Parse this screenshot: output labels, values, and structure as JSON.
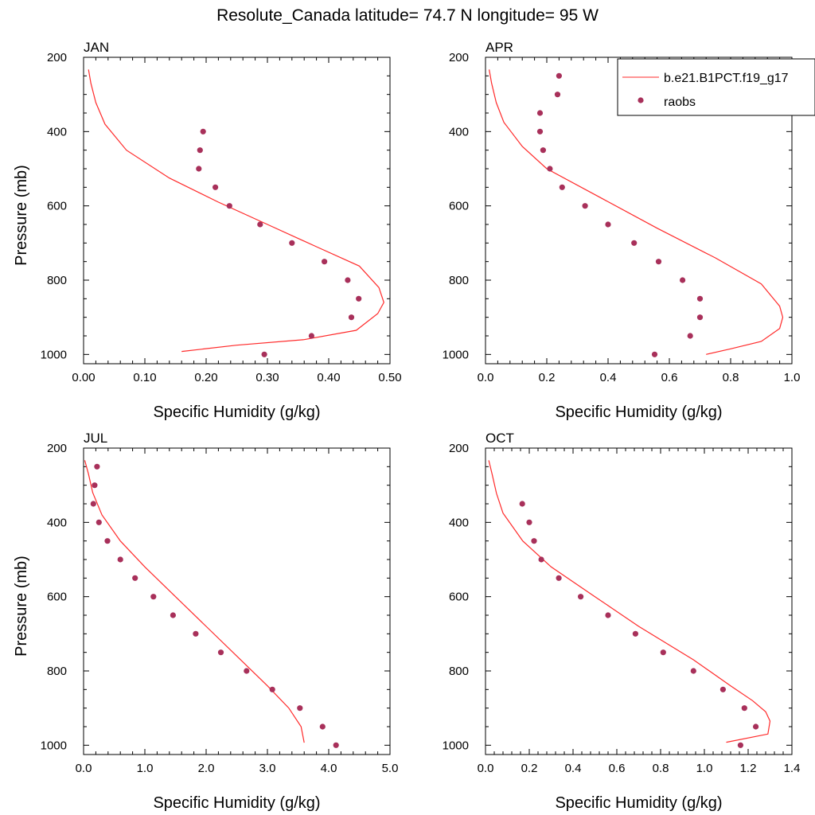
{
  "figure": {
    "title": "Resolute_Canada  latitude= 74.7 N longitude= 95 W"
  },
  "legend": {
    "model_label": "b.e21.B1PCT.f19_g17",
    "obs_label": "raobs"
  },
  "colors": {
    "model_line": "#ff2a2a",
    "obs_marker": "#a8305a",
    "axes": "#000000"
  },
  "chart_data": [
    {
      "type": "line+scatter",
      "panel_title": "JAN",
      "xlabel": "Specific Humidity (g/kg)",
      "ylabel": "Pressure (mb)",
      "xlim": [
        0,
        0.5
      ],
      "ylim": [
        1025,
        200
      ],
      "y_inverted": true,
      "xticks": [
        "0.00",
        "0.10",
        "0.20",
        "0.30",
        "0.40",
        "0.50"
      ],
      "xtick_values": [
        0,
        0.1,
        0.2,
        0.3,
        0.4,
        0.5
      ],
      "yticks": [
        200,
        400,
        600,
        800,
        1000
      ],
      "series": [
        {
          "name": "b.e21.B1PCT.f19_g17",
          "kind": "line",
          "points": [
            [
              0.008,
              233
            ],
            [
              0.012,
              270
            ],
            [
              0.02,
              322
            ],
            [
              0.035,
              380
            ],
            [
              0.07,
              450
            ],
            [
              0.14,
              525
            ],
            [
              0.22,
              590
            ],
            [
              0.3,
              650
            ],
            [
              0.38,
              710
            ],
            [
              0.45,
              762
            ],
            [
              0.482,
              820
            ],
            [
              0.49,
              860
            ],
            [
              0.48,
              890
            ],
            [
              0.445,
              935
            ],
            [
              0.36,
              960
            ],
            [
              0.25,
              975
            ],
            [
              0.16,
              992
            ]
          ]
        },
        {
          "name": "raobs",
          "kind": "scatter",
          "points": [
            [
              0.195,
              400
            ],
            [
              0.19,
              450
            ],
            [
              0.188,
              500
            ],
            [
              0.215,
              550
            ],
            [
              0.238,
              600
            ],
            [
              0.288,
              650
            ],
            [
              0.34,
              700
            ],
            [
              0.393,
              750
            ],
            [
              0.431,
              800
            ],
            [
              0.449,
              850
            ],
            [
              0.437,
              900
            ],
            [
              0.372,
              950
            ],
            [
              0.295,
              1000
            ]
          ]
        }
      ]
    },
    {
      "type": "line+scatter",
      "panel_title": "APR",
      "xlabel": "Specific Humidity (g/kg)",
      "ylabel": "",
      "xlim": [
        0,
        1.0
      ],
      "ylim": [
        1025,
        200
      ],
      "y_inverted": true,
      "xticks": [
        "0.0",
        "0.2",
        "0.4",
        "0.6",
        "0.8",
        "1.0"
      ],
      "xtick_values": [
        0,
        0.2,
        0.4,
        0.6,
        0.8,
        1.0
      ],
      "yticks": [
        200,
        400,
        600,
        800,
        1000
      ],
      "series": [
        {
          "name": "b.e21.B1PCT.f19_g17",
          "kind": "line",
          "points": [
            [
              0.012,
              233
            ],
            [
              0.02,
              270
            ],
            [
              0.035,
              322
            ],
            [
              0.06,
              375
            ],
            [
              0.12,
              440
            ],
            [
              0.2,
              500
            ],
            [
              0.38,
              580
            ],
            [
              0.56,
              660
            ],
            [
              0.75,
              740
            ],
            [
              0.9,
              810
            ],
            [
              0.96,
              870
            ],
            [
              0.97,
              900
            ],
            [
              0.96,
              930
            ],
            [
              0.9,
              965
            ],
            [
              0.8,
              985
            ],
            [
              0.72,
              1000
            ]
          ]
        },
        {
          "name": "raobs",
          "kind": "scatter",
          "points": [
            [
              0.24,
              250
            ],
            [
              0.235,
              300
            ],
            [
              0.178,
              350
            ],
            [
              0.178,
              400
            ],
            [
              0.188,
              450
            ],
            [
              0.21,
              500
            ],
            [
              0.25,
              550
            ],
            [
              0.325,
              600
            ],
            [
              0.4,
              650
            ],
            [
              0.485,
              700
            ],
            [
              0.565,
              750
            ],
            [
              0.643,
              800
            ],
            [
              0.7,
              850
            ],
            [
              0.7,
              900
            ],
            [
              0.668,
              950
            ],
            [
              0.552,
              1000
            ]
          ]
        }
      ]
    },
    {
      "type": "line+scatter",
      "panel_title": "JUL",
      "xlabel": "Specific Humidity (g/kg)",
      "ylabel": "Pressure (mb)",
      "xlim": [
        0,
        5.0
      ],
      "ylim": [
        1025,
        200
      ],
      "y_inverted": true,
      "xticks": [
        "0.0",
        "1.0",
        "2.0",
        "3.0",
        "4.0",
        "5.0"
      ],
      "xtick_values": [
        0,
        1,
        2,
        3,
        4,
        5
      ],
      "yticks": [
        200,
        400,
        600,
        800,
        1000
      ],
      "series": [
        {
          "name": "b.e21.B1PCT.f19_g17",
          "kind": "line",
          "points": [
            [
              0.02,
              233
            ],
            [
              0.08,
              270
            ],
            [
              0.15,
              320
            ],
            [
              0.3,
              380
            ],
            [
              0.6,
              450
            ],
            [
              1.0,
              520
            ],
            [
              1.5,
              600
            ],
            [
              2.0,
              680
            ],
            [
              2.5,
              760
            ],
            [
              3.0,
              840
            ],
            [
              3.35,
              900
            ],
            [
              3.55,
              950
            ],
            [
              3.6,
              993
            ]
          ]
        },
        {
          "name": "raobs",
          "kind": "scatter",
          "points": [
            [
              0.22,
              250
            ],
            [
              0.18,
              300
            ],
            [
              0.16,
              350
            ],
            [
              0.25,
              400
            ],
            [
              0.39,
              450
            ],
            [
              0.6,
              500
            ],
            [
              0.84,
              550
            ],
            [
              1.14,
              600
            ],
            [
              1.46,
              650
            ],
            [
              1.83,
              700
            ],
            [
              2.24,
              750
            ],
            [
              2.66,
              800
            ],
            [
              3.08,
              850
            ],
            [
              3.53,
              900
            ],
            [
              3.9,
              950
            ],
            [
              4.12,
              1000
            ]
          ]
        }
      ]
    },
    {
      "type": "line+scatter",
      "panel_title": "OCT",
      "xlabel": "Specific Humidity (g/kg)",
      "ylabel": "",
      "xlim": [
        0,
        1.4
      ],
      "ylim": [
        1025,
        200
      ],
      "y_inverted": true,
      "xticks": [
        "0.0",
        "0.2",
        "0.4",
        "0.6",
        "0.8",
        "1.0",
        "1.2",
        "1.4"
      ],
      "xtick_values": [
        0,
        0.2,
        0.4,
        0.6,
        0.8,
        1.0,
        1.2,
        1.4
      ],
      "yticks": [
        200,
        400,
        600,
        800,
        1000
      ],
      "series": [
        {
          "name": "b.e21.B1PCT.f19_g17",
          "kind": "line",
          "points": [
            [
              0.015,
              233
            ],
            [
              0.03,
              270
            ],
            [
              0.05,
              322
            ],
            [
              0.08,
              375
            ],
            [
              0.17,
              450
            ],
            [
              0.3,
              520
            ],
            [
              0.5,
              600
            ],
            [
              0.7,
              680
            ],
            [
              0.95,
              770
            ],
            [
              1.12,
              840
            ],
            [
              1.22,
              880
            ],
            [
              1.28,
              910
            ],
            [
              1.3,
              935
            ],
            [
              1.29,
              970
            ],
            [
              1.1,
              992
            ]
          ]
        },
        {
          "name": "raobs",
          "kind": "scatter",
          "points": [
            [
              0.168,
              350
            ],
            [
              0.2,
              400
            ],
            [
              0.222,
              450
            ],
            [
              0.255,
              500
            ],
            [
              0.335,
              550
            ],
            [
              0.435,
              600
            ],
            [
              0.56,
              650
            ],
            [
              0.685,
              700
            ],
            [
              0.812,
              750
            ],
            [
              0.95,
              800
            ],
            [
              1.085,
              850
            ],
            [
              1.183,
              900
            ],
            [
              1.235,
              950
            ],
            [
              1.165,
              1000
            ]
          ]
        }
      ]
    }
  ]
}
